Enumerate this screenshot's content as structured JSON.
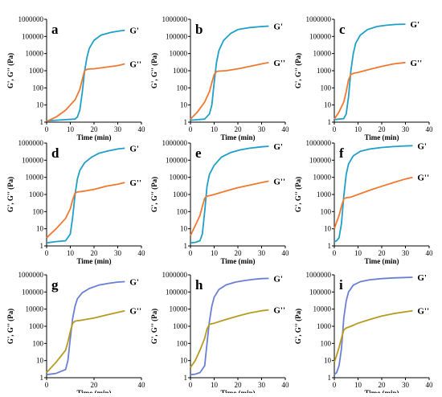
{
  "chart_data": [
    {
      "type": "line",
      "panel": "a",
      "xlabel": "Time (min)",
      "ylabel": "G', G'' (Pa)",
      "xlim": [
        0,
        40
      ],
      "ylim": [
        1,
        1000000
      ],
      "yscale": "log",
      "xticks": [
        "0",
        "10",
        "20",
        "30",
        "40"
      ],
      "yticks": [
        "1",
        "10",
        "100",
        "1000",
        "10000",
        "100000",
        "1000000"
      ],
      "series": [
        {
          "name": "G'",
          "color": "#1f9fc8",
          "x": [
            0,
            4,
            8,
            12,
            13,
            14,
            15,
            16,
            17,
            18,
            20,
            23,
            27,
            30,
            33
          ],
          "y": [
            1.2,
            1.3,
            1.4,
            1.5,
            2,
            5,
            50,
            900,
            6000,
            20000,
            60000,
            120000,
            170000,
            200000,
            230000
          ]
        },
        {
          "name": "G''",
          "color": "#f07830",
          "x": [
            0,
            4,
            8,
            12,
            14,
            15,
            16,
            17,
            18,
            20,
            25,
            30,
            33
          ],
          "y": [
            1.1,
            2,
            5,
            20,
            80,
            300,
            1000,
            1200,
            1250,
            1300,
            1600,
            2000,
            2500
          ]
        }
      ]
    },
    {
      "type": "line",
      "panel": "b",
      "xlabel": "Time (min)",
      "ylabel": "G', G'' (Pa)",
      "xlim": [
        0,
        40
      ],
      "ylim": [
        1,
        1000000
      ],
      "yscale": "log",
      "xticks": [
        "0",
        "10",
        "20",
        "30",
        "40"
      ],
      "yticks": [
        "1",
        "10",
        "100",
        "1000",
        "10000",
        "100000",
        "1000000"
      ],
      "series": [
        {
          "name": "G'",
          "color": "#1f9fc8",
          "x": [
            0,
            3,
            6,
            8,
            9,
            10,
            11,
            12,
            14,
            17,
            20,
            25,
            30,
            33
          ],
          "y": [
            1.3,
            1.4,
            1.5,
            3,
            10,
            200,
            3000,
            15000,
            60000,
            150000,
            250000,
            330000,
            380000,
            400000
          ]
        },
        {
          "name": "G''",
          "color": "#f07830",
          "x": [
            0,
            3,
            6,
            8,
            9,
            10,
            11,
            12,
            15,
            20,
            25,
            30,
            33
          ],
          "y": [
            1.5,
            4,
            15,
            60,
            200,
            600,
            900,
            950,
            1000,
            1300,
            1800,
            2500,
            3000
          ]
        }
      ]
    },
    {
      "type": "line",
      "panel": "c",
      "xlabel": "Time (min)",
      "ylabel": "G', G'' (Pa)",
      "xlim": [
        0,
        40
      ],
      "ylim": [
        1,
        1000000
      ],
      "yscale": "log",
      "xticks": [
        "0",
        "10",
        "20",
        "30",
        "40"
      ],
      "yticks": [
        "1",
        "10",
        "100",
        "1000",
        "10000",
        "100000",
        "1000000"
      ],
      "series": [
        {
          "name": "G'",
          "color": "#1f9fc8",
          "x": [
            0,
            2,
            4,
            5,
            6,
            7,
            8,
            9,
            11,
            14,
            18,
            22,
            26,
            30
          ],
          "y": [
            1.4,
            1.5,
            1.6,
            3,
            30,
            1000,
            10000,
            40000,
            120000,
            250000,
            380000,
            450000,
            500000,
            520000
          ]
        },
        {
          "name": "G''",
          "color": "#f07830",
          "x": [
            0,
            2,
            4,
            5,
            6,
            7,
            8,
            10,
            15,
            20,
            25,
            30
          ],
          "y": [
            1.5,
            4,
            15,
            60,
            300,
            600,
            700,
            800,
            1200,
            1800,
            2500,
            3000
          ]
        }
      ]
    },
    {
      "type": "line",
      "panel": "d",
      "xlabel": "Time (min)",
      "ylabel": "G', G'' (Pa)",
      "xlim": [
        0,
        40
      ],
      "ylim": [
        1,
        1000000
      ],
      "yscale": "log",
      "xticks": [
        "0",
        "10",
        "20",
        "30",
        "40"
      ],
      "yticks": [
        "1",
        "10",
        "100",
        "1000",
        "10000",
        "100000",
        "1000000"
      ],
      "series": [
        {
          "name": "G'",
          "color": "#1f9fc8",
          "x": [
            0,
            4,
            8,
            10,
            11,
            12,
            13,
            14,
            16,
            19,
            22,
            26,
            30,
            33
          ],
          "y": [
            1.5,
            1.8,
            2,
            5,
            50,
            1000,
            8000,
            25000,
            70000,
            150000,
            250000,
            350000,
            450000,
            500000
          ]
        },
        {
          "name": "G''",
          "color": "#f07830",
          "x": [
            0,
            4,
            8,
            10,
            11,
            12,
            13,
            15,
            20,
            25,
            30,
            33
          ],
          "y": [
            3,
            10,
            40,
            150,
            500,
            1200,
            1400,
            1500,
            2000,
            3000,
            4000,
            5000
          ]
        }
      ]
    },
    {
      "type": "line",
      "panel": "e",
      "xlabel": "Time (min)",
      "ylabel": "G', G'' (Pa)",
      "xlim": [
        0,
        40
      ],
      "ylim": [
        1,
        1000000
      ],
      "yscale": "log",
      "xticks": [
        "0",
        "10",
        "20",
        "30",
        "40"
      ],
      "yticks": [
        "1",
        "10",
        "100",
        "1000",
        "10000",
        "100000",
        "1000000"
      ],
      "series": [
        {
          "name": "G'",
          "color": "#1f9fc8",
          "x": [
            0,
            2,
            4,
            5,
            6,
            7,
            8,
            10,
            13,
            17,
            21,
            25,
            30,
            33
          ],
          "y": [
            1.5,
            1.6,
            2,
            5,
            100,
            3000,
            15000,
            50000,
            150000,
            280000,
            400000,
            500000,
            600000,
            650000
          ]
        },
        {
          "name": "G''",
          "color": "#f07830",
          "x": [
            0,
            2,
            4,
            5,
            6,
            7,
            8,
            10,
            15,
            20,
            25,
            30,
            33
          ],
          "y": [
            4,
            15,
            60,
            200,
            600,
            800,
            850,
            1000,
            1600,
            2500,
            3500,
            5000,
            6000
          ]
        }
      ]
    },
    {
      "type": "line",
      "panel": "f",
      "xlabel": "Time (min)",
      "ylabel": "G', G'' (Pa)",
      "xlim": [
        0,
        40
      ],
      "ylim": [
        1,
        1000000
      ],
      "yscale": "log",
      "xticks": [
        "0",
        "10",
        "20",
        "30",
        "40"
      ],
      "yticks": [
        "1",
        "10",
        "100",
        "1000",
        "10000",
        "100000",
        "1000000"
      ],
      "series": [
        {
          "name": "G'",
          "color": "#1f9fc8",
          "x": [
            0,
            1,
            2,
            3,
            4,
            5,
            6,
            8,
            11,
            15,
            20,
            25,
            30,
            33
          ],
          "y": [
            1.8,
            2,
            3,
            20,
            800,
            15000,
            60000,
            180000,
            330000,
            450000,
            550000,
            620000,
            680000,
            700000
          ]
        },
        {
          "name": "G''",
          "color": "#f07830",
          "x": [
            0,
            1,
            2,
            3,
            4,
            5,
            7,
            10,
            15,
            20,
            25,
            30,
            33
          ],
          "y": [
            10,
            25,
            60,
            200,
            550,
            650,
            700,
            1000,
            1800,
            3000,
            5000,
            8000,
            10000
          ]
        }
      ]
    },
    {
      "type": "line",
      "panel": "g",
      "xlabel": "Time (min)",
      "ylabel": "G', G'' (Pa)",
      "xlim": [
        0,
        40
      ],
      "ylim": [
        1,
        1000000
      ],
      "yscale": "log",
      "xticks": [
        "0",
        "20",
        "40"
      ],
      "yticks": [
        "1",
        "10",
        "100",
        "1000",
        "10000",
        "100000",
        "1000000"
      ],
      "series": [
        {
          "name": "G'",
          "color": "#6a7fd4",
          "x": [
            0,
            4,
            8,
            9,
            10,
            11,
            12,
            13,
            15,
            18,
            22,
            26,
            30,
            33
          ],
          "y": [
            1.5,
            1.8,
            3,
            10,
            200,
            3000,
            15000,
            40000,
            90000,
            160000,
            250000,
            320000,
            380000,
            400000
          ]
        },
        {
          "name": "G''",
          "color": "#b89a20",
          "x": [
            0,
            4,
            8,
            9,
            10,
            11,
            12,
            13,
            15,
            20,
            25,
            30,
            33
          ],
          "y": [
            2,
            8,
            40,
            120,
            500,
            1500,
            2000,
            2100,
            2300,
            3000,
            4500,
            6500,
            8000
          ]
        }
      ]
    },
    {
      "type": "line",
      "panel": "h",
      "xlabel": "Time (min)",
      "ylabel": "G', G'' (Pa)",
      "xlim": [
        0,
        40
      ],
      "ylim": [
        1,
        1000000
      ],
      "yscale": "log",
      "xticks": [
        "0",
        "10",
        "20",
        "30",
        "40"
      ],
      "yticks": [
        "1",
        "10",
        "100",
        "1000",
        "10000",
        "100000",
        "1000000"
      ],
      "series": [
        {
          "name": "G'",
          "color": "#6a7fd4",
          "x": [
            0,
            2,
            4,
            6,
            7,
            8,
            9,
            10,
            12,
            15,
            19,
            23,
            27,
            30,
            33
          ],
          "y": [
            1.5,
            1.6,
            2,
            5,
            100,
            2000,
            15000,
            50000,
            140000,
            260000,
            380000,
            470000,
            550000,
            600000,
            620000
          ]
        },
        {
          "name": "G''",
          "color": "#b89a20",
          "x": [
            0,
            2,
            4,
            6,
            7,
            8,
            9,
            10,
            15,
            20,
            25,
            30,
            33
          ],
          "y": [
            4,
            10,
            40,
            200,
            700,
            1300,
            1400,
            1500,
            2500,
            4000,
            6000,
            8000,
            9000
          ]
        }
      ]
    },
    {
      "type": "line",
      "panel": "i",
      "xlabel": "Time (min)",
      "ylabel": "G', G'' (Pa)",
      "xlim": [
        0,
        40
      ],
      "ylim": [
        1,
        1000000
      ],
      "yscale": "log",
      "xticks": [
        "0",
        "10",
        "20",
        "30",
        "40"
      ],
      "yticks": [
        "1",
        "10",
        "100",
        "1000",
        "10000",
        "100000",
        "1000000"
      ],
      "series": [
        {
          "name": "G'",
          "color": "#6a7fd4",
          "x": [
            0,
            1,
            2,
            3,
            4,
            5,
            6,
            8,
            11,
            15,
            20,
            25,
            30,
            33
          ],
          "y": [
            1.5,
            2,
            5,
            50,
            3000,
            30000,
            100000,
            250000,
            400000,
            520000,
            600000,
            660000,
            700000,
            720000
          ]
        },
        {
          "name": "G''",
          "color": "#b89a20",
          "x": [
            0,
            1,
            2,
            3,
            4,
            5,
            7,
            10,
            15,
            20,
            25,
            30,
            33
          ],
          "y": [
            8,
            20,
            60,
            200,
            600,
            800,
            1000,
            1500,
            2500,
            4000,
            5500,
            7000,
            8000
          ]
        }
      ]
    }
  ]
}
